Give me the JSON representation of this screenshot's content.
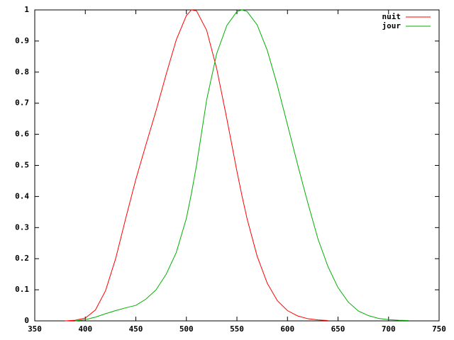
{
  "chart_data": {
    "type": "line",
    "x": [
      380,
      390,
      400,
      410,
      420,
      430,
      440,
      450,
      460,
      470,
      480,
      490,
      500,
      505,
      510,
      520,
      530,
      540,
      550,
      555,
      560,
      570,
      580,
      590,
      600,
      610,
      620,
      630,
      640,
      650,
      660,
      670,
      680,
      690,
      700,
      710,
      720
    ],
    "series": [
      {
        "name": "nuit",
        "color": "#ff0000",
        "values": [
          0,
          0.002,
          0.009,
          0.035,
          0.097,
          0.2,
          0.33,
          0.455,
          0.567,
          0.676,
          0.793,
          0.904,
          0.982,
          1.0,
          0.997,
          0.935,
          0.811,
          0.65,
          0.481,
          0.402,
          0.329,
          0.208,
          0.121,
          0.065,
          0.033,
          0.016,
          0.007,
          0.003,
          0.001,
          null,
          null,
          null,
          null,
          null,
          null,
          null,
          null
        ]
      },
      {
        "name": "jour",
        "color": "#00b000",
        "values": [
          null,
          0.0001,
          0.004,
          0.012,
          0.023,
          0.033,
          0.042,
          0.05,
          0.07,
          0.1,
          0.15,
          0.22,
          0.33,
          0.41,
          0.5,
          0.71,
          0.86,
          0.95,
          0.995,
          1.0,
          0.995,
          0.952,
          0.87,
          0.757,
          0.631,
          0.503,
          0.381,
          0.265,
          0.175,
          0.107,
          0.061,
          0.032,
          0.017,
          0.008,
          0.004,
          0.002,
          0.001
        ]
      }
    ],
    "xlim": [
      350,
      750
    ],
    "xticks": [
      350,
      400,
      450,
      500,
      550,
      600,
      650,
      700,
      750
    ],
    "ylim": [
      0,
      1
    ],
    "yticks": [
      0,
      0.1,
      0.2,
      0.3,
      0.4,
      0.5,
      0.6,
      0.7,
      0.8,
      0.9,
      1
    ],
    "legend": "top-right"
  }
}
